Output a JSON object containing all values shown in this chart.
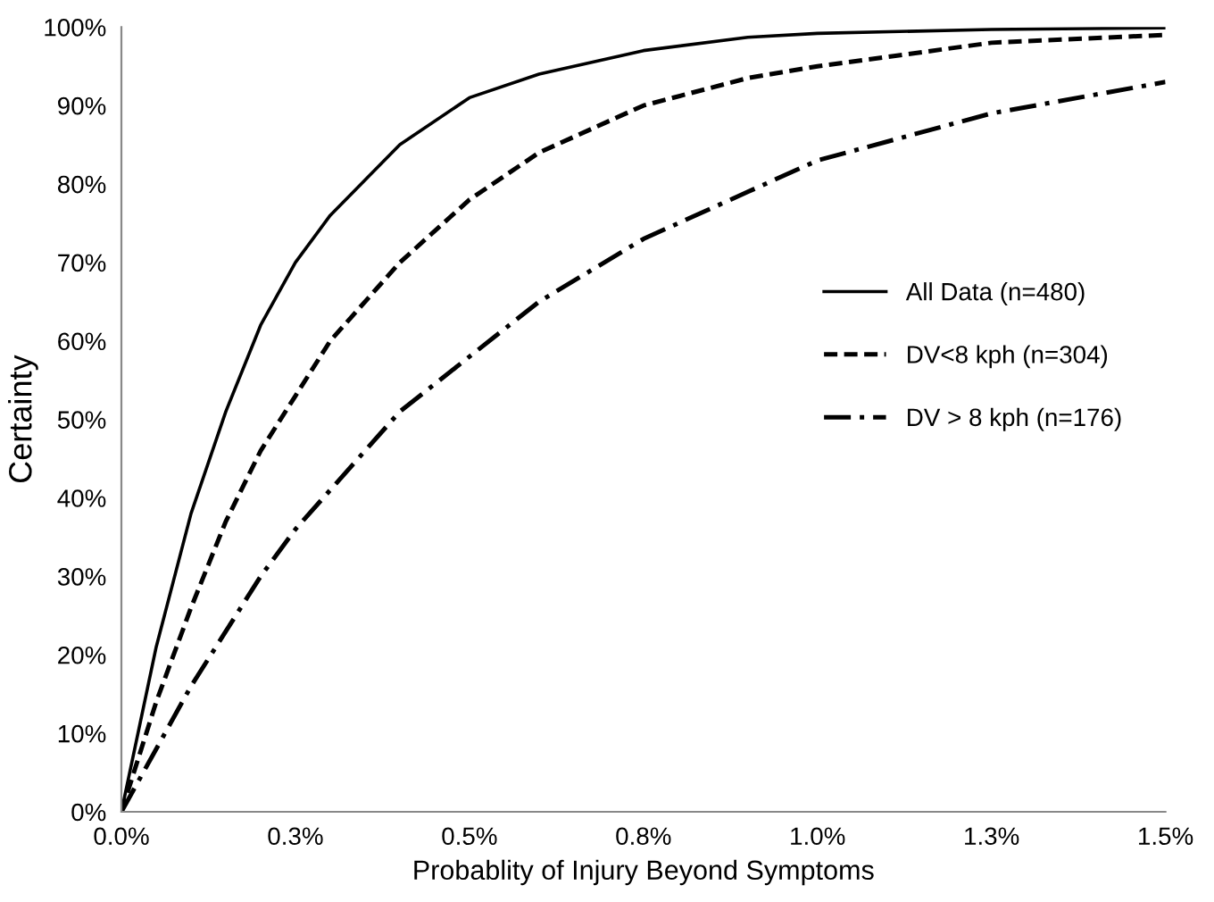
{
  "chart_data": {
    "type": "line",
    "xlabel": "Probablity of Injury Beyond Symptoms",
    "ylabel": "Certainty",
    "x": [
      0,
      0.05,
      0.1,
      0.15,
      0.2,
      0.25,
      0.3,
      0.4,
      0.5,
      0.6,
      0.75,
      0.9,
      1.0,
      1.25,
      1.5
    ],
    "series": [
      {
        "name": "All Data (n=480)",
        "color": "#000000",
        "line_style": "solid",
        "values": [
          0,
          21,
          38,
          51,
          62,
          70,
          76,
          85,
          91,
          94,
          97,
          98.7,
          99.2,
          99.7,
          99.9
        ]
      },
      {
        "name": "DV<8 kph (n=304)",
        "color": "#000000",
        "line_style": "dashed",
        "values": [
          0,
          14,
          26,
          37,
          46,
          53,
          60,
          70,
          78,
          84,
          90,
          93.5,
          95,
          98,
          99
        ]
      },
      {
        "name": "DV > 8 kph (n=176)",
        "color": "#000000",
        "line_style": "dashdot",
        "values": [
          0,
          8,
          16,
          23,
          30,
          36,
          41,
          51,
          58,
          65,
          73,
          79,
          83,
          89,
          93
        ]
      }
    ],
    "xlim": [
      0,
      1.5
    ],
    "ylim": [
      0,
      100
    ],
    "xticks": [
      {
        "value": 0,
        "label": "0.0%"
      },
      {
        "value": 0.25,
        "label": "0.3%"
      },
      {
        "value": 0.5,
        "label": "0.5%"
      },
      {
        "value": 0.75,
        "label": "0.8%"
      },
      {
        "value": 1.0,
        "label": "1.0%"
      },
      {
        "value": 1.25,
        "label": "1.3%"
      },
      {
        "value": 1.5,
        "label": "1.5%"
      }
    ],
    "yticks": [
      {
        "value": 0,
        "label": "0%"
      },
      {
        "value": 10,
        "label": "10%"
      },
      {
        "value": 20,
        "label": "20%"
      },
      {
        "value": 30,
        "label": "30%"
      },
      {
        "value": 40,
        "label": "40%"
      },
      {
        "value": 50,
        "label": "50%"
      },
      {
        "value": 60,
        "label": "60%"
      },
      {
        "value": 70,
        "label": "70%"
      },
      {
        "value": 80,
        "label": "80%"
      },
      {
        "value": 90,
        "label": "90%"
      },
      {
        "value": 100,
        "label": "100%"
      }
    ],
    "legend": "right",
    "grid": false,
    "marker": "none"
  }
}
